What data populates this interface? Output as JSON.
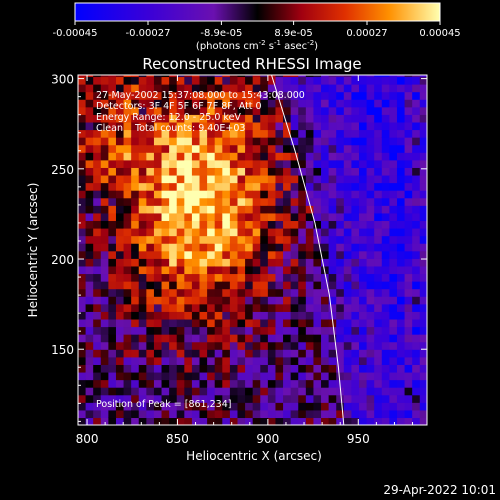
{
  "chart_data": {
    "type": "heatmap",
    "title": "Reconstructed RHESSI Image",
    "xlabel": "Heliocentric X (arcsec)",
    "ylabel": "Heliocentric Y (arcsec)",
    "xlim": [
      795,
      988
    ],
    "ylim": [
      108,
      302
    ],
    "xticks": [
      800,
      850,
      900,
      950
    ],
    "yticks": [
      150,
      200,
      250,
      300
    ],
    "colorbar": {
      "range": [
        -0.00045,
        0.00045
      ],
      "ticks": [
        "-0.00045",
        "-0.00027",
        "-8.9e-05",
        "8.9e-05",
        "0.00027",
        "0.00045"
      ],
      "unit_text": "(photons cm",
      "unit_exp1": "-2",
      "unit_mid": " s",
      "unit_exp2": "-1",
      "unit_mid2": " asec",
      "unit_exp3": "-2",
      "unit_end": ")"
    },
    "annotations": [
      "27-May-2002 15:37:08.000 to 15:43:08.000",
      "Detectors: 3F 4F 5F 6F 7F 8F, Att 0",
      "Energy Range: 12.0 - 25.0 keV",
      "Clean    Total counts: 9.40E+03"
    ],
    "peak_label": "Position of Peak = [861,234]",
    "peak": [
      861,
      234
    ],
    "limb_curve": [
      [
        902,
        302
      ],
      [
        915,
        260
      ],
      [
        926,
        220
      ],
      [
        934,
        180
      ],
      [
        939,
        140
      ],
      [
        942,
        108
      ]
    ],
    "grid": false
  },
  "footer": {
    "timestamp": "29-Apr-2022 10:01"
  }
}
